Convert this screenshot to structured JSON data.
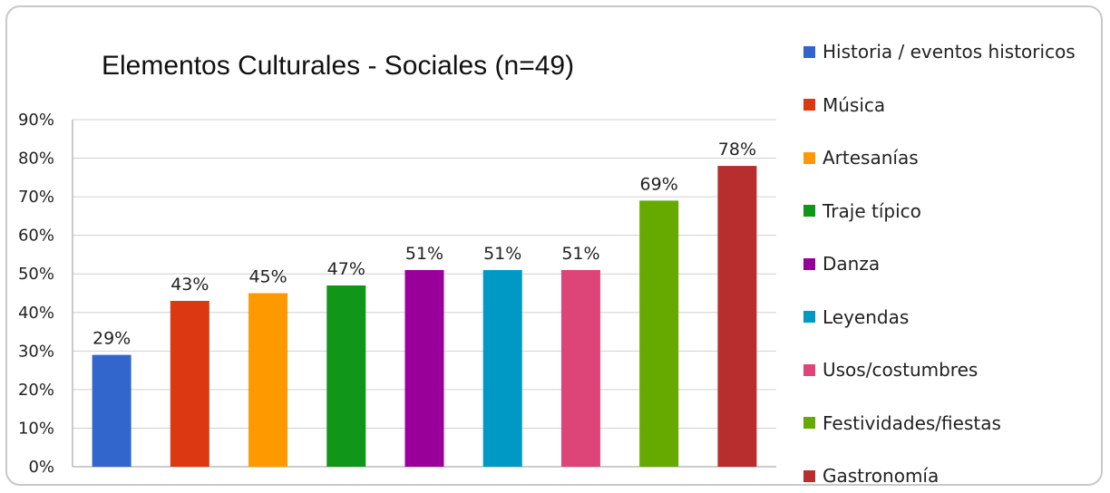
{
  "chart_data": {
    "type": "bar",
    "title": "Elementos Culturales - Sociales (n=49)",
    "xlabel": "",
    "ylabel": "",
    "ylim": [
      0,
      90
    ],
    "yticks": [
      "0%",
      "10%",
      "20%",
      "30%",
      "40%",
      "50%",
      "60%",
      "70%",
      "80%",
      "90%"
    ],
    "grid": true,
    "legend_position": "right",
    "categories": [
      "Historia / eventos historicos",
      "Música",
      "Artesanías",
      "Traje típico",
      "Danza",
      "Leyendas",
      "Usos/costumbres",
      "Festividades/fiestas",
      "Gastronomía"
    ],
    "values": [
      29,
      43,
      45,
      47,
      51,
      51,
      51,
      69,
      78
    ],
    "data_labels": [
      "29%",
      "43%",
      "45%",
      "47%",
      "51%",
      "51%",
      "51%",
      "69%",
      "78%"
    ],
    "colors": [
      "#3366cc",
      "#dc3912",
      "#ff9900",
      "#109618",
      "#990099",
      "#0099c6",
      "#dd4477",
      "#66aa00",
      "#b82e2e"
    ]
  }
}
